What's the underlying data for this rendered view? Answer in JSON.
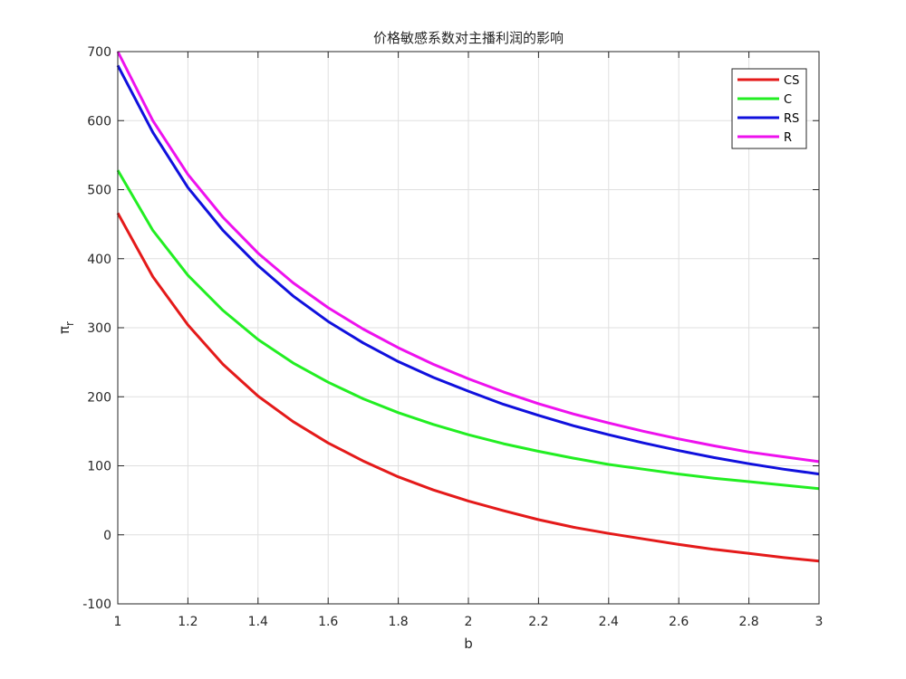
{
  "chart_data": {
    "type": "line",
    "title": "价格敏感系数对主播利润的影响",
    "xlabel": "b",
    "ylabel_symbol": "π",
    "ylabel_subscript": "r",
    "xlim": [
      1,
      3
    ],
    "ylim": [
      -100,
      700
    ],
    "xticks": [
      1,
      1.2,
      1.4,
      1.6,
      1.8,
      2,
      2.2,
      2.4,
      2.6,
      2.8,
      3
    ],
    "xtick_labels": [
      "1",
      "1.2",
      "1.4",
      "1.6",
      "1.8",
      "2",
      "2.2",
      "2.4",
      "2.6",
      "2.8",
      "3"
    ],
    "yticks": [
      -100,
      0,
      100,
      200,
      300,
      400,
      500,
      600,
      700
    ],
    "ytick_labels": [
      "-100",
      "0",
      "100",
      "200",
      "300",
      "400",
      "500",
      "600",
      "700"
    ],
    "grid": true,
    "legend_position": "top-right",
    "x": [
      1,
      1.1,
      1.2,
      1.3,
      1.4,
      1.5,
      1.6,
      1.7,
      1.8,
      1.9,
      2,
      2.1,
      2.2,
      2.3,
      2.4,
      2.5,
      2.6,
      2.7,
      2.8,
      2.9,
      3
    ],
    "series": [
      {
        "name": "CS",
        "color": "#e41a1a",
        "values": [
          466,
          374,
          304,
          247,
          201,
          164,
          133,
          107,
          84,
          65,
          49,
          35,
          22,
          11,
          2,
          -6,
          -14,
          -21,
          -27,
          -33,
          -38
        ]
      },
      {
        "name": "C",
        "color": "#22ee22",
        "values": [
          528,
          441,
          376,
          325,
          283,
          249,
          221,
          197,
          177,
          160,
          145,
          132,
          121,
          111,
          102,
          95,
          88,
          82,
          77,
          72,
          67
        ]
      },
      {
        "name": "RS",
        "color": "#1010dd",
        "values": [
          680,
          583,
          503,
          441,
          390,
          346,
          309,
          278,
          251,
          228,
          208,
          189,
          173,
          158,
          145,
          133,
          122,
          112,
          103,
          95,
          88
        ]
      },
      {
        "name": "R",
        "color": "#ee11ee",
        "values": [
          700,
          600,
          522,
          460,
          408,
          365,
          329,
          298,
          271,
          247,
          226,
          207,
          190,
          175,
          162,
          150,
          139,
          129,
          120,
          113,
          106
        ]
      }
    ]
  }
}
